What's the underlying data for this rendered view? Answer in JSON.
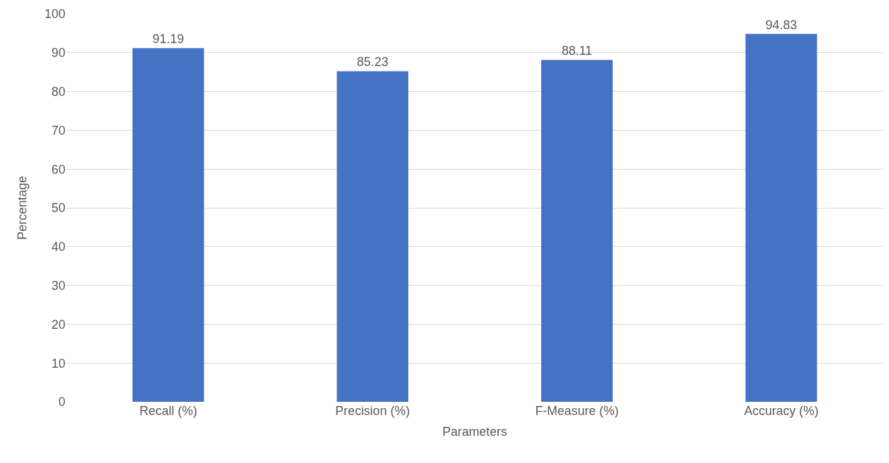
{
  "chart_data": {
    "type": "bar",
    "xlabel": "Parameters",
    "ylabel": "Percentage",
    "categories": [
      "Recall (%)",
      "Precision (%)",
      "F-Measure (%)",
      "Accuracy (%)"
    ],
    "values": [
      91.19,
      85.23,
      88.11,
      94.83
    ],
    "color": "#4472c4",
    "ylim": [
      0,
      100
    ],
    "yticks": [
      0,
      10,
      20,
      30,
      40,
      50,
      60,
      70,
      80,
      90,
      100
    ],
    "grid": "y",
    "data_labels": true
  }
}
